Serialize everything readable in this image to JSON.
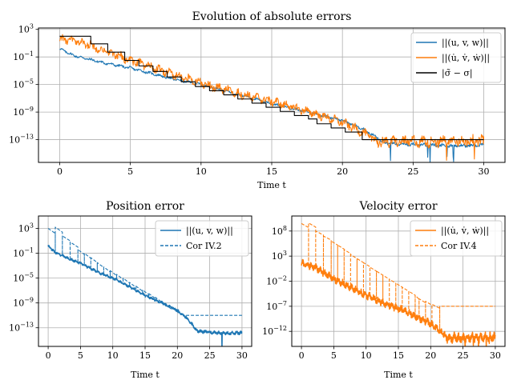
{
  "figure": {
    "width": 635,
    "height": 480
  },
  "chart_data": [
    {
      "id": "top",
      "type": "line",
      "title": "Evolution of absolute errors",
      "xlabel": "Time t",
      "ylabel": "",
      "xlim": [
        -1.5,
        31.5
      ],
      "ylog": true,
      "ylim_exp": [
        -16.3,
        3.2
      ],
      "xticks": [
        0,
        5,
        10,
        15,
        20,
        25,
        30
      ],
      "yticks": [
        {
          "exp": 3,
          "label": "10",
          "sup": "3"
        },
        {
          "exp": -1,
          "label": "10",
          "sup": "−1"
        },
        {
          "exp": -5,
          "label": "10",
          "sup": "−5"
        },
        {
          "exp": -9,
          "label": "10",
          "sup": "−9"
        },
        {
          "exp": -13,
          "label": "10",
          "sup": "−13"
        }
      ],
      "grid": true,
      "legend_position": "top-right",
      "series": [
        {
          "name": "||(u, v, w)||",
          "color": "#1f77b4",
          "style": "solid",
          "kind": "noisy",
          "points": [
            [
              0,
              0.2
            ],
            [
              1,
              -0.8
            ],
            [
              3,
              -1.8
            ],
            [
              5,
              -2.6
            ],
            [
              8,
              -4.2
            ],
            [
              10,
              -5.0
            ],
            [
              13,
              -6.6
            ],
            [
              15,
              -7.8
            ],
            [
              18,
              -9.2
            ],
            [
              20,
              -10.2
            ],
            [
              21.5,
              -11.5
            ],
            [
              22.5,
              -12.8
            ],
            [
              23,
              -13.5
            ],
            [
              26,
              -13.8
            ],
            [
              28,
              -13.9
            ],
            [
              30,
              -13.8
            ]
          ],
          "noise": 0.15
        },
        {
          "name": "||(u̇, v̇, ẇ)||",
          "color": "#ff7f0e",
          "style": "solid",
          "kind": "noisy",
          "points": [
            [
              0,
              1.6
            ],
            [
              1,
              1.3
            ],
            [
              2,
              0.8
            ],
            [
              3,
              0.0
            ],
            [
              5,
              -1.5
            ],
            [
              8,
              -3.5
            ],
            [
              10,
              -4.8
            ],
            [
              13,
              -6.5
            ],
            [
              15,
              -7.4
            ],
            [
              18,
              -9.2
            ],
            [
              20,
              -10.5
            ],
            [
              21,
              -11.5
            ],
            [
              22,
              -12.6
            ],
            [
              22.5,
              -13.3
            ],
            [
              30,
              -13.2
            ]
          ],
          "noise": 0.5
        },
        {
          "name": "|σ̃ − σ|",
          "color": "#000000",
          "style": "solid",
          "kind": "step",
          "steps": [
            [
              0,
              2.0
            ],
            [
              2.2,
              0.9
            ],
            [
              3.4,
              -0.3
            ],
            [
              4.6,
              -1.5
            ],
            [
              5.6,
              -2.3
            ],
            [
              6.6,
              -3.1
            ],
            [
              7.6,
              -3.9
            ],
            [
              8.6,
              -4.6
            ],
            [
              9.6,
              -5.3
            ],
            [
              10.6,
              -5.9
            ],
            [
              11.6,
              -6.5
            ],
            [
              12.6,
              -7.1
            ],
            [
              13.6,
              -7.7
            ],
            [
              14.6,
              -8.3
            ],
            [
              15.6,
              -8.9
            ],
            [
              16.6,
              -9.5
            ],
            [
              17.6,
              -10.0
            ],
            [
              18.2,
              -10.7
            ],
            [
              19.2,
              -11.3
            ],
            [
              20.2,
              -11.9
            ],
            [
              21.4,
              -13.0
            ],
            [
              30,
              -13.0
            ]
          ]
        }
      ]
    },
    {
      "id": "pos",
      "type": "line",
      "title": "Position error",
      "xlabel": "Time t",
      "ylabel": "",
      "xlim": [
        -1.5,
        31.5
      ],
      "ylog": true,
      "ylim_exp": [
        -16.0,
        5.0
      ],
      "xticks": [
        0,
        5,
        10,
        15,
        20,
        25,
        30
      ],
      "yticks": [
        {
          "exp": 3,
          "label": "10",
          "sup": "3"
        },
        {
          "exp": -1,
          "label": "10",
          "sup": "−1"
        },
        {
          "exp": -5,
          "label": "10",
          "sup": "−5"
        },
        {
          "exp": -9,
          "label": "10",
          "sup": "−9"
        },
        {
          "exp": -13,
          "label": "10",
          "sup": "−13"
        }
      ],
      "grid": true,
      "legend_position": "top-right",
      "series": [
        {
          "name": "||(u, v, w)||",
          "color": "#1f77b4",
          "style": "solid",
          "kind": "noisy",
          "points": [
            [
              0,
              0.2
            ],
            [
              1,
              -0.8
            ],
            [
              3,
              -1.8
            ],
            [
              5,
              -2.6
            ],
            [
              8,
              -4.2
            ],
            [
              10,
              -5.0
            ],
            [
              13,
              -6.6
            ],
            [
              15,
              -7.8
            ],
            [
              18,
              -9.2
            ],
            [
              20,
              -10.2
            ],
            [
              21.5,
              -11.5
            ],
            [
              22.5,
              -12.8
            ],
            [
              23,
              -13.5
            ],
            [
              26,
              -13.8
            ],
            [
              28,
              -13.9
            ],
            [
              30,
              -13.8
            ]
          ],
          "noise": 0.15
        },
        {
          "name": "Cor IV.2",
          "color": "#1f77b4",
          "style": "dashed",
          "kind": "sawtooth",
          "resets": [
            0,
            1.1,
            2.2,
            3.4,
            4.6,
            5.6,
            6.6,
            7.6,
            8.6,
            9.6,
            10.6,
            11.6,
            12.6,
            13.6,
            14.6,
            15.6,
            16.6,
            17.6,
            18.2,
            19.2,
            20.2,
            21.4
          ],
          "peaks": [
            3.0,
            3.2,
            1.8,
            0.8,
            -0.4,
            -1.0,
            -1.7,
            -2.5,
            -3.2,
            -3.8,
            -4.4,
            -5.0,
            -5.7,
            -6.3,
            -6.9,
            -7.5,
            -8.1,
            -8.7,
            -9.3,
            -9.8,
            -10.4,
            -11.0
          ],
          "floor": -11.0,
          "floor_end": 30
        }
      ]
    },
    {
      "id": "vel",
      "type": "line",
      "title": "Velocity error",
      "xlabel": "Time t",
      "ylabel": "",
      "xlim": [
        -1.5,
        31.5
      ],
      "ylog": true,
      "ylim_exp": [
        -15.0,
        11.0
      ],
      "xticks": [
        0,
        5,
        10,
        15,
        20,
        25,
        30
      ],
      "yticks": [
        {
          "exp": 8,
          "label": "10",
          "sup": "8"
        },
        {
          "exp": 3,
          "label": "10",
          "sup": "3"
        },
        {
          "exp": -2,
          "label": "10",
          "sup": "−2"
        },
        {
          "exp": -7,
          "label": "10",
          "sup": "−7"
        },
        {
          "exp": -12,
          "label": "10",
          "sup": "−12"
        }
      ],
      "grid": true,
      "legend_position": "top-right",
      "series": [
        {
          "name": "||(u̇, v̇, ẇ)||",
          "color": "#ff7f0e",
          "style": "solid",
          "kind": "noisy",
          "points": [
            [
              0,
              1.6
            ],
            [
              1,
              1.3
            ],
            [
              2,
              0.8
            ],
            [
              3,
              0.0
            ],
            [
              5,
              -1.5
            ],
            [
              8,
              -3.5
            ],
            [
              10,
              -4.8
            ],
            [
              13,
              -6.5
            ],
            [
              15,
              -7.4
            ],
            [
              18,
              -9.2
            ],
            [
              20,
              -10.5
            ],
            [
              21,
              -11.5
            ],
            [
              22,
              -12.6
            ],
            [
              22.5,
              -13.3
            ],
            [
              30,
              -13.2
            ]
          ],
          "noise": 0.55
        },
        {
          "name": "Cor IV.4",
          "color": "#ff7f0e",
          "style": "dashed",
          "kind": "sawtooth",
          "resets": [
            0,
            1.1,
            2.2,
            3.4,
            4.6,
            5.6,
            6.6,
            7.6,
            8.6,
            9.6,
            10.6,
            11.6,
            12.6,
            13.6,
            14.6,
            15.6,
            16.6,
            17.6,
            18.2,
            19.2,
            20.2,
            21.4
          ],
          "peaks": [
            9.5,
            9.6,
            8.0,
            7.0,
            6.0,
            5.2,
            4.3,
            3.3,
            2.5,
            1.7,
            0.8,
            0.0,
            -0.8,
            -1.6,
            -2.4,
            -3.2,
            -4.0,
            -4.8,
            -5.5,
            -6.0,
            -6.6,
            -7.0
          ],
          "floor": -7.0,
          "floor_end": 30
        }
      ]
    }
  ]
}
